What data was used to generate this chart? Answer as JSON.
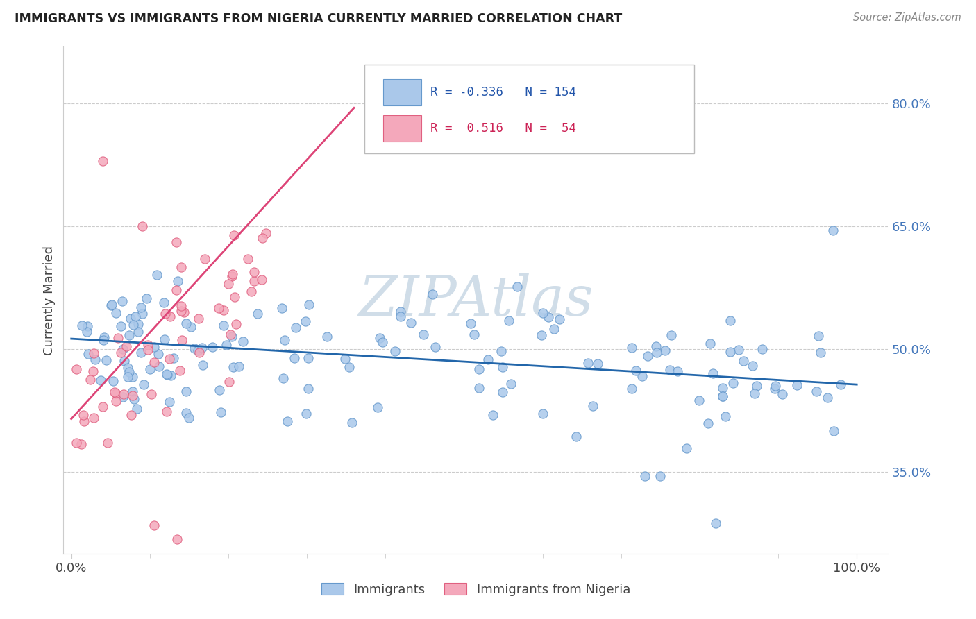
{
  "title": "IMMIGRANTS VS IMMIGRANTS FROM NIGERIA CURRENTLY MARRIED CORRELATION CHART",
  "source": "Source: ZipAtlas.com",
  "ylabel": "Currently Married",
  "ytick_labels": [
    "35.0%",
    "50.0%",
    "65.0%",
    "80.0%"
  ],
  "ytick_values": [
    0.35,
    0.5,
    0.65,
    0.8
  ],
  "xlim": [
    -0.01,
    1.04
  ],
  "ylim": [
    0.25,
    0.87
  ],
  "legend_blue_r": "-0.336",
  "legend_blue_n": "154",
  "legend_pink_r": "0.516",
  "legend_pink_n": "54",
  "blue_color": "#aac8ea",
  "blue_edge": "#6699cc",
  "pink_color": "#f4a8bb",
  "pink_edge": "#e06080",
  "trendline_blue_color": "#2266aa",
  "trendline_pink_color": "#dd4477",
  "watermark": "ZIPAtlas",
  "watermark_color": "#d0dde8",
  "blue_trend_x": [
    0.0,
    1.0
  ],
  "blue_trend_y": [
    0.513,
    0.457
  ],
  "pink_trend_x": [
    0.0,
    0.36
  ],
  "pink_trend_y": [
    0.415,
    0.795
  ]
}
